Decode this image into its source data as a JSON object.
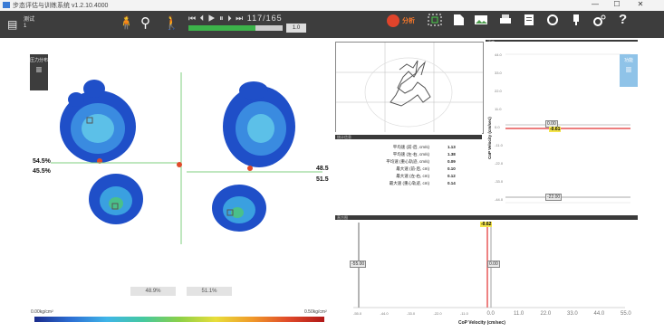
{
  "titlebar": {
    "title": "步态评估与训练系统 v1.2.10.4000",
    "minimize": "—",
    "maximize": "☐",
    "close": "✕"
  },
  "toolbar": {
    "patient_label": "测试",
    "patient_id": "1",
    "playback": {
      "controls": "⏮ ⏴ ▶ ⏸ ⏵ ⏭",
      "counter": "117/165",
      "progress": 0.71,
      "speed": "1.0"
    },
    "analyze_label": "分析"
  },
  "left_panel": {
    "side_label": "压力分布",
    "left_pct_top": "54.5%",
    "left_pct_bottom": "45.5%",
    "right_pct_top": "48.5",
    "right_pct_bottom": "51.5",
    "bottom_left_pct": "48.9%",
    "bottom_right_pct": "51.1%",
    "colorbar_min": "0.00kg/cm²",
    "colorbar_max": "0.50kg/cm²"
  },
  "stats": {
    "head": "统计信息",
    "rows": [
      {
        "label": "平均速 (前-后, cm/s)",
        "value": "1.13"
      },
      {
        "label": "平均速 (左-右, cm/s)",
        "value": "1.38"
      },
      {
        "label": "平均速 (重心轨迹, cm/s)",
        "value": "0.09"
      },
      {
        "label": "最大速 (前-后, cm)",
        "value": "0.10"
      },
      {
        "label": "最大速 (左-右, cm)",
        "value": "0.12"
      },
      {
        "label": "最大速 (重心轨迹, cm)",
        "value": "0.14"
      }
    ]
  },
  "velocity_chart": {
    "head": "速度",
    "ylabel": "CoP Velocity (cm/sec)",
    "ticks": [
      "44.0",
      "33.0",
      "22.0",
      "11.0",
      "0.0",
      "-11.0",
      "-22.0",
      "-33.0",
      "-44.0"
    ],
    "marker_top": "0.00",
    "marker_value": "-0.61",
    "marker_bottom": "-22.00",
    "menu_label": "功能"
  },
  "histogram": {
    "head": "直方图",
    "xlabel": "CoP Velocity (cm/sec)",
    "ticks": [
      "-55.0",
      "-44.0",
      "-33.0",
      "-22.0",
      "-11.0",
      "0.0",
      "11.0",
      "22.0",
      "33.0",
      "44.0",
      "55.0"
    ],
    "marker_value": "-0.62",
    "marker_left": "-55.00",
    "marker_mid": "0.00"
  },
  "colors": {
    "toolbar": "#3d3d3d",
    "accent_green": "#3cb34a",
    "highlight_red": "#e23030"
  }
}
